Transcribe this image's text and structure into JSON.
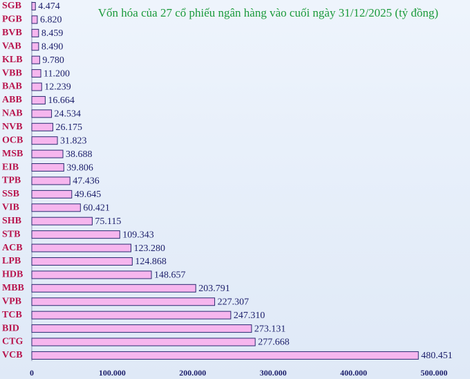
{
  "chart_data": {
    "type": "bar",
    "orientation": "horizontal",
    "title": "Vốn hóa của 27 cổ phiếu ngân hàng vào cuối ngày 31/12/2025 (tỷ đồng)",
    "categories": [
      "SGB",
      "PGB",
      "BVB",
      "VAB",
      "KLB",
      "VBB",
      "BAB",
      "ABB",
      "NAB",
      "NVB",
      "OCB",
      "MSB",
      "EIB",
      "TPB",
      "SSB",
      "VIB",
      "SHB",
      "STB",
      "ACB",
      "LPB",
      "HDB",
      "MBB",
      "VPB",
      "TCB",
      "BID",
      "CTG",
      "VCB"
    ],
    "values": [
      4474,
      6820,
      8459,
      8490,
      9780,
      11200,
      12239,
      16664,
      24534,
      26175,
      31823,
      38688,
      39806,
      47436,
      49645,
      60421,
      75115,
      109343,
      123280,
      124868,
      148657,
      203791,
      227307,
      247310,
      273131,
      277668,
      480451
    ],
    "value_labels": [
      "4.474",
      "6.820",
      "8.459",
      "8.490",
      "9.780",
      "11.200",
      "12.239",
      "16.664",
      "24.534",
      "26.175",
      "31.823",
      "38.688",
      "39.806",
      "47.436",
      "49.645",
      "60.421",
      "75.115",
      "109.343",
      "123.280",
      "124.868",
      "148.657",
      "203.791",
      "227.307",
      "247.310",
      "273.131",
      "277.668",
      "480.451"
    ],
    "color": "#f6b6ee",
    "xlim": [
      0,
      500000
    ],
    "xticks": [
      0,
      {
        "value": 100000,
        "label": "100.000"
      },
      {
        "value": 200000,
        "label": "200.000"
      },
      {
        "value": 300000,
        "label": "300.000"
      },
      {
        "value": 400000,
        "label": "400.000"
      },
      {
        "value": 500000,
        "label": "500.000"
      }
    ],
    "grid": false
  }
}
